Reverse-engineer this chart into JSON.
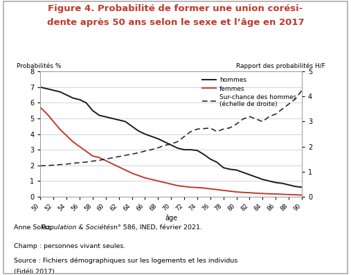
{
  "title_line1": "Figure 4. Probabilité de former une union corési-",
  "title_line2": "dente après 50 ans selon le sexe et l’âge en 2017",
  "title_color": "#c0392b",
  "ylabel_left": "Probabilités %",
  "ylabel_right": "Rapport des probabilités H/F",
  "xlabel": "âge",
  "ylim_left": [
    0,
    8
  ],
  "ylim_right": [
    0,
    5
  ],
  "yticks_left": [
    0,
    1,
    2,
    3,
    4,
    5,
    6,
    7,
    8
  ],
  "yticks_right": [
    0,
    1,
    2,
    3,
    4,
    5
  ],
  "ages": [
    50,
    51,
    52,
    53,
    54,
    55,
    56,
    57,
    58,
    59,
    60,
    61,
    62,
    63,
    64,
    65,
    66,
    67,
    68,
    69,
    70,
    71,
    72,
    73,
    74,
    75,
    76,
    77,
    78,
    79,
    80,
    81,
    82,
    83,
    84,
    85,
    86,
    87,
    88,
    89,
    90
  ],
  "hommes": [
    7.0,
    6.9,
    6.8,
    6.7,
    6.5,
    6.3,
    6.2,
    6.0,
    5.5,
    5.2,
    5.1,
    5.0,
    4.9,
    4.8,
    4.5,
    4.2,
    4.0,
    3.85,
    3.7,
    3.5,
    3.3,
    3.1,
    3.0,
    3.0,
    2.95,
    2.7,
    2.4,
    2.2,
    1.85,
    1.75,
    1.7,
    1.55,
    1.4,
    1.25,
    1.1,
    1.0,
    0.9,
    0.85,
    0.75,
    0.65,
    0.6
  ],
  "femmes": [
    5.7,
    5.3,
    4.8,
    4.3,
    3.9,
    3.5,
    3.2,
    2.9,
    2.6,
    2.5,
    2.3,
    2.1,
    1.9,
    1.7,
    1.5,
    1.35,
    1.2,
    1.1,
    1.0,
    0.9,
    0.8,
    0.7,
    0.65,
    0.6,
    0.58,
    0.55,
    0.5,
    0.45,
    0.4,
    0.35,
    0.3,
    0.27,
    0.25,
    0.22,
    0.2,
    0.18,
    0.17,
    0.15,
    0.13,
    0.12,
    0.1
  ],
  "surchance": [
    1.23,
    1.24,
    1.26,
    1.28,
    1.3,
    1.33,
    1.36,
    1.38,
    1.42,
    1.45,
    1.5,
    1.55,
    1.6,
    1.65,
    1.7,
    1.75,
    1.82,
    1.88,
    1.95,
    2.05,
    2.1,
    2.2,
    2.4,
    2.6,
    2.7,
    2.72,
    2.74,
    2.6,
    2.7,
    2.75,
    2.9,
    3.1,
    3.2,
    3.1,
    3.0,
    3.2,
    3.3,
    3.5,
    3.7,
    3.9,
    4.25
  ],
  "xtick_labels": [
    "50",
    "52",
    "54",
    "56",
    "58",
    "60",
    "62",
    "64",
    "66",
    "68",
    "70",
    "72",
    "74",
    "76",
    "78",
    "80",
    "82",
    "84",
    "86",
    "88",
    "90"
  ],
  "xtick_positions": [
    50,
    52,
    54,
    56,
    58,
    60,
    62,
    64,
    66,
    68,
    70,
    72,
    74,
    76,
    78,
    80,
    82,
    84,
    86,
    88,
    90
  ],
  "hommes_color": "#1a1a1a",
  "femmes_color": "#c0392b",
  "surchance_color": "#1a1a1a",
  "bg_color": "#ffffff",
  "border_color": "#aaaaaa",
  "grid_color": "#cccccc",
  "footnote1a": "Anne Solaz, ",
  "footnote1b": "Population & Sociétés",
  "footnote1c": " n° 586, INED, février 2021.",
  "footnote2": "Champ : personnes vivant seules.",
  "footnote3": "Source : Fichiers démographiques sur les logements et les individus",
  "footnote4": "(Fidéli 2017).",
  "legend_hommes": "hommes",
  "legend_femmes": "femmes",
  "legend_surchance1": "Sur-chance des hommes",
  "legend_surchance2": "(échelle de droite)"
}
